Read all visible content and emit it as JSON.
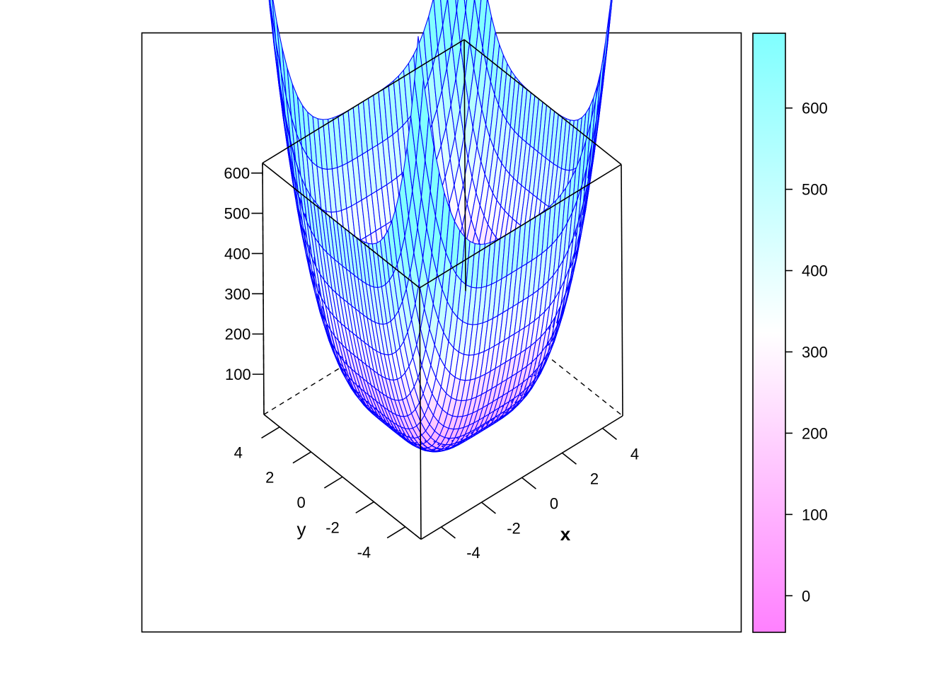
{
  "chart_data": {
    "type": "surface3d",
    "function": "z = x^4 + y^4 (wireframe surface, lattice wireframe style)",
    "x": {
      "label": "x",
      "range": [
        -5,
        5
      ],
      "ticks": [
        -4,
        -2,
        0,
        2,
        4
      ],
      "tick_labels": [
        "-4",
        "-2",
        "0",
        "2",
        "4"
      ]
    },
    "y": {
      "label": "y",
      "range": [
        -5,
        5
      ],
      "ticks": [
        -4,
        -2,
        0,
        2,
        4
      ],
      "tick_labels": [
        "-4",
        "-2",
        "0",
        "2",
        "4"
      ]
    },
    "z": {
      "label": "",
      "range": [
        0,
        625
      ],
      "ticks": [
        100,
        200,
        300,
        400,
        500,
        600
      ],
      "tick_labels": [
        "100",
        "200",
        "300",
        "400",
        "500",
        "600"
      ]
    },
    "grid_points_per_axis": 41,
    "colorkey": {
      "range": [
        -45,
        692
      ],
      "ticks": [
        0,
        100,
        200,
        300,
        400,
        500,
        600
      ],
      "tick_labels": [
        "0",
        "100",
        "200",
        "300",
        "400",
        "500",
        "600"
      ],
      "colors": {
        "low": "#ff80ff",
        "mid": "#ffffff",
        "high": "#80ffff"
      },
      "placement": "right"
    },
    "colors": {
      "mesh_line": "#0000ff",
      "box_line": "#000000"
    }
  }
}
